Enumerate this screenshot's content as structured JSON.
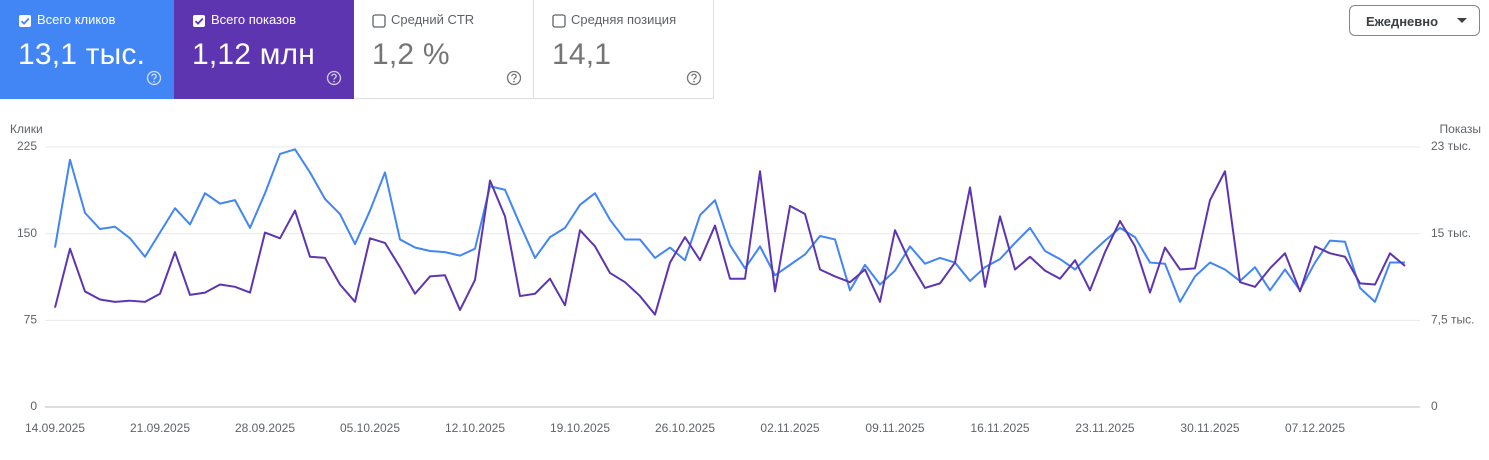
{
  "cards": [
    {
      "label": "Всего кликов",
      "value": "13,1 тыс.",
      "checked": true,
      "color": "#4285f4"
    },
    {
      "label": "Всего показов",
      "value": "1,12 млн",
      "checked": true,
      "color": "#5e35b1"
    },
    {
      "label": "Средний CTR",
      "value": "1,2 %",
      "checked": false
    },
    {
      "label": "Средняя позиция",
      "value": "14,1",
      "checked": false
    }
  ],
  "dropdown": {
    "label": "Ежедневно"
  },
  "chart_data": {
    "type": "line",
    "y_label": "Клики",
    "y2_label": "Показы",
    "grid": true,
    "ylim": [
      0,
      225
    ],
    "yticks": [
      0,
      75,
      150,
      225
    ],
    "y2lim": [
      0,
      22500
    ],
    "y2ticks": [
      0,
      {
        "value": 7500,
        "label": "7,5 тыс."
      },
      {
        "value": 15000,
        "label": "15 тыс."
      },
      {
        "value": 22500,
        "label": "23 тыс."
      }
    ],
    "x": [
      "14.09.2025",
      "15.09.2025",
      "16.09.2025",
      "17.09.2025",
      "18.09.2025",
      "19.09.2025",
      "20.09.2025",
      "21.09.2025",
      "22.09.2025",
      "23.09.2025",
      "24.09.2025",
      "25.09.2025",
      "26.09.2025",
      "27.09.2025",
      "28.09.2025",
      "29.09.2025",
      "30.09.2025",
      "01.10.2025",
      "02.10.2025",
      "03.10.2025",
      "04.10.2025",
      "05.10.2025",
      "06.10.2025",
      "07.10.2025",
      "08.10.2025",
      "09.10.2025",
      "10.10.2025",
      "11.10.2025",
      "12.10.2025",
      "13.10.2025",
      "14.10.2025",
      "15.10.2025",
      "16.10.2025",
      "17.10.2025",
      "18.10.2025",
      "19.10.2025",
      "20.10.2025",
      "21.10.2025",
      "22.10.2025",
      "23.10.2025",
      "24.10.2025",
      "25.10.2025",
      "26.10.2025",
      "27.10.2025",
      "28.10.2025",
      "29.10.2025",
      "30.10.2025",
      "31.10.2025",
      "01.11.2025",
      "02.11.2025",
      "03.11.2025",
      "04.11.2025",
      "05.11.2025",
      "06.11.2025",
      "07.11.2025",
      "08.11.2025",
      "09.11.2025",
      "10.11.2025",
      "11.11.2025",
      "12.11.2025",
      "13.11.2025",
      "14.11.2025",
      "15.11.2025",
      "16.11.2025",
      "17.11.2025",
      "18.11.2025",
      "19.11.2025",
      "20.11.2025",
      "21.11.2025",
      "22.11.2025",
      "23.11.2025",
      "24.11.2025",
      "25.11.2025",
      "26.11.2025",
      "27.11.2025",
      "28.11.2025",
      "29.11.2025",
      "30.11.2025",
      "01.12.2025",
      "02.12.2025",
      "03.12.2025",
      "04.12.2025",
      "05.12.2025",
      "06.12.2025",
      "07.12.2025",
      "08.12.2025",
      "09.12.2025",
      "10.12.2025",
      "11.12.2025",
      "12.12.2025",
      "13.12.2025"
    ],
    "xticks": [
      "14.09.2025",
      "21.09.2025",
      "28.09.2025",
      "05.10.2025",
      "12.10.2025",
      "19.10.2025",
      "26.10.2025",
      "02.11.2025",
      "09.11.2025",
      "16.11.2025",
      "23.11.2025",
      "30.11.2025",
      "07.12.2025"
    ],
    "series": [
      {
        "color": "#4285f4",
        "axis": "y",
        "values": [
          138,
          214,
          168,
          154,
          156,
          146,
          130,
          151,
          172,
          158,
          185,
          176,
          179,
          155,
          185,
          219,
          223,
          203,
          180,
          167,
          141,
          170,
          203,
          145,
          138,
          135,
          134,
          131,
          137,
          191,
          188,
          158,
          129,
          147,
          155,
          175,
          185,
          162,
          145,
          145,
          129,
          138,
          127,
          166,
          179,
          140,
          120,
          139,
          114,
          123,
          132,
          148,
          145,
          101,
          123,
          106,
          118,
          139,
          124,
          129,
          125,
          109,
          121,
          128,
          142,
          155,
          135,
          128,
          119,
          132,
          144,
          155,
          147,
          125,
          124,
          91,
          113,
          125,
          119,
          109,
          121,
          101,
          119,
          101,
          125,
          144,
          143,
          103,
          91,
          125,
          125
        ]
      },
      {
        "color": "#5e35b1",
        "axis": "y2",
        "values": [
          8600,
          13700,
          10000,
          9300,
          9100,
          9200,
          9100,
          9800,
          13400,
          9700,
          9900,
          10600,
          10400,
          9900,
          15100,
          14600,
          17000,
          13000,
          12900,
          10600,
          9100,
          14600,
          14200,
          12100,
          9800,
          11300,
          11400,
          8400,
          11000,
          19600,
          16500,
          9600,
          9800,
          11100,
          8800,
          15300,
          13900,
          11600,
          10800,
          9600,
          8000,
          12500,
          14700,
          12700,
          15700,
          11100,
          11100,
          20400,
          10000,
          17400,
          16700,
          11900,
          11300,
          10800,
          11900,
          9100,
          15300,
          12500,
          10300,
          10700,
          12500,
          19000,
          10400,
          16500,
          11900,
          13000,
          11800,
          11100,
          12700,
          10100,
          13400,
          16100,
          13900,
          9900,
          13800,
          11900,
          12000,
          17900,
          20400,
          10800,
          10400,
          12000,
          13300,
          10000,
          13900,
          13300,
          13000,
          10700,
          10600,
          13300,
          12200
        ]
      }
    ]
  }
}
